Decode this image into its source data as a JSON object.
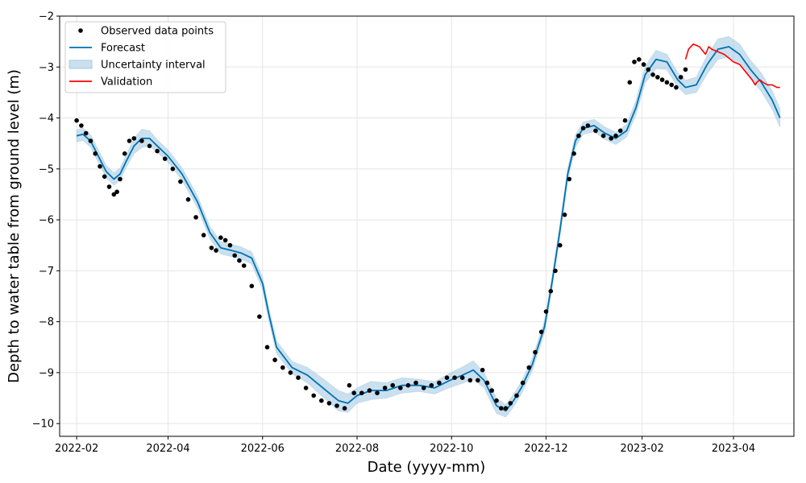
{
  "chart_data": {
    "type": "line",
    "xlabel": "Date (yyyy-mm)",
    "ylabel": "Depth to water table from ground level (m)",
    "x_ticks": [
      "2022-02",
      "2022-04",
      "2022-06",
      "2022-08",
      "2022-10",
      "2022-12",
      "2023-02",
      "2023-04"
    ],
    "xlim": [
      "2022-01-21",
      "2023-05-10"
    ],
    "y_ticks": [
      "−2",
      "−3",
      "−4",
      "−5",
      "−6",
      "−7",
      "−8",
      "−9",
      "−10"
    ],
    "ylim": [
      -10.25,
      -2
    ],
    "grid": true,
    "legend_position": "top-left",
    "colors": {
      "observed": "#000000",
      "forecast": "#0072B2",
      "uncertainty": "#A6CBE3",
      "validation": "#FF0000",
      "grid": "#E5E5E5"
    },
    "legend": [
      {
        "label": "Observed data points",
        "kind": "dot"
      },
      {
        "label": "Forecast",
        "kind": "line"
      },
      {
        "label": "Uncertainty interval",
        "kind": "band"
      },
      {
        "label": "Validation",
        "kind": "red-line"
      }
    ],
    "series": [
      {
        "name": "Observed data points",
        "kind": "scatter",
        "x": [
          "2022-02-01",
          "2022-02-04",
          "2022-02-07",
          "2022-02-10",
          "2022-02-13",
          "2022-02-16",
          "2022-02-19",
          "2022-02-22",
          "2022-02-25",
          "2022-02-27",
          "2022-03-01",
          "2022-03-04",
          "2022-03-07",
          "2022-03-10",
          "2022-03-15",
          "2022-03-20",
          "2022-03-25",
          "2022-03-30",
          "2022-04-04",
          "2022-04-09",
          "2022-04-14",
          "2022-04-19",
          "2022-04-24",
          "2022-04-29",
          "2022-05-02",
          "2022-05-05",
          "2022-05-08",
          "2022-05-11",
          "2022-05-14",
          "2022-05-17",
          "2022-05-20",
          "2022-05-25",
          "2022-05-30",
          "2022-06-04",
          "2022-06-09",
          "2022-06-14",
          "2022-06-19",
          "2022-06-24",
          "2022-06-29",
          "2022-07-04",
          "2022-07-09",
          "2022-07-14",
          "2022-07-19",
          "2022-07-24",
          "2022-07-27",
          "2022-07-30",
          "2022-08-04",
          "2022-08-09",
          "2022-08-14",
          "2022-08-19",
          "2022-08-24",
          "2022-08-29",
          "2022-09-03",
          "2022-09-08",
          "2022-09-13",
          "2022-09-18",
          "2022-09-23",
          "2022-09-28",
          "2022-10-03",
          "2022-10-08",
          "2022-10-13",
          "2022-10-18",
          "2022-10-21",
          "2022-10-24",
          "2022-10-27",
          "2022-10-30",
          "2022-11-02",
          "2022-11-05",
          "2022-11-08",
          "2022-11-12",
          "2022-11-16",
          "2022-11-20",
          "2022-11-24",
          "2022-11-28",
          "2022-12-01",
          "2022-12-04",
          "2022-12-07",
          "2022-12-10",
          "2022-12-13",
          "2022-12-16",
          "2022-12-19",
          "2022-12-22",
          "2022-12-25",
          "2022-12-28",
          "2023-01-02",
          "2023-01-07",
          "2023-01-12",
          "2023-01-15",
          "2023-01-18",
          "2023-01-21",
          "2023-01-24",
          "2023-01-27",
          "2023-01-30",
          "2023-02-02",
          "2023-02-05",
          "2023-02-08",
          "2023-02-11",
          "2023-02-14",
          "2023-02-17",
          "2023-02-20",
          "2023-02-23",
          "2023-02-26",
          "2023-03-01"
        ],
        "y": [
          -4.05,
          -4.15,
          -4.3,
          -4.45,
          -4.7,
          -4.95,
          -5.15,
          -5.35,
          -5.5,
          -5.45,
          -5.2,
          -4.7,
          -4.45,
          -4.4,
          -4.45,
          -4.55,
          -4.65,
          -4.8,
          -5.0,
          -5.25,
          -5.6,
          -5.95,
          -6.3,
          -6.55,
          -6.6,
          -6.35,
          -6.4,
          -6.5,
          -6.7,
          -6.8,
          -6.9,
          -7.3,
          -7.9,
          -8.5,
          -8.75,
          -8.9,
          -9.0,
          -9.1,
          -9.3,
          -9.45,
          -9.55,
          -9.6,
          -9.65,
          -9.7,
          -9.25,
          -9.4,
          -9.4,
          -9.35,
          -9.4,
          -9.3,
          -9.25,
          -9.3,
          -9.25,
          -9.2,
          -9.3,
          -9.25,
          -9.2,
          -9.1,
          -9.1,
          -9.1,
          -9.15,
          -9.15,
          -8.95,
          -9.2,
          -9.35,
          -9.55,
          -9.7,
          -9.7,
          -9.6,
          -9.45,
          -9.2,
          -8.9,
          -8.6,
          -8.2,
          -7.8,
          -7.4,
          -7.0,
          -6.5,
          -5.9,
          -5.2,
          -4.7,
          -4.35,
          -4.2,
          -4.15,
          -4.25,
          -4.35,
          -4.4,
          -4.35,
          -4.25,
          -4.05,
          -3.3,
          -2.9,
          -2.85,
          -2.95,
          -3.05,
          -3.15,
          -3.2,
          -3.25,
          -3.3,
          -3.35,
          -3.4,
          -3.2,
          -3.05
        ]
      },
      {
        "name": "Forecast",
        "kind": "line",
        "x": [
          "2022-02-01",
          "2022-02-05",
          "2022-02-10",
          "2022-02-15",
          "2022-02-20",
          "2022-02-25",
          "2022-03-01",
          "2022-03-05",
          "2022-03-10",
          "2022-03-15",
          "2022-03-20",
          "2022-03-25",
          "2022-04-01",
          "2022-04-10",
          "2022-04-20",
          "2022-04-28",
          "2022-05-05",
          "2022-05-12",
          "2022-05-18",
          "2022-05-25",
          "2022-06-01",
          "2022-06-05",
          "2022-06-10",
          "2022-06-20",
          "2022-06-30",
          "2022-07-10",
          "2022-07-20",
          "2022-07-26",
          "2022-08-01",
          "2022-08-10",
          "2022-08-20",
          "2022-08-30",
          "2022-09-10",
          "2022-09-20",
          "2022-09-30",
          "2022-10-08",
          "2022-10-15",
          "2022-10-22",
          "2022-10-30",
          "2022-11-05",
          "2022-11-10",
          "2022-11-15",
          "2022-11-22",
          "2022-11-30",
          "2022-12-05",
          "2022-12-10",
          "2022-12-15",
          "2022-12-20",
          "2022-12-25",
          "2023-01-01",
          "2023-01-08",
          "2023-01-15",
          "2023-01-22",
          "2023-01-28",
          "2023-02-03",
          "2023-02-10",
          "2023-02-17",
          "2023-02-24",
          "2023-03-01",
          "2023-03-08",
          "2023-03-15",
          "2023-03-22",
          "2023-03-29",
          "2023-04-05",
          "2023-04-12",
          "2023-04-19",
          "2023-04-26",
          "2023-05-01"
        ],
        "y": [
          -4.35,
          -4.32,
          -4.45,
          -4.75,
          -5.05,
          -5.2,
          -5.1,
          -4.85,
          -4.55,
          -4.4,
          -4.4,
          -4.55,
          -4.75,
          -5.1,
          -5.65,
          -6.25,
          -6.55,
          -6.6,
          -6.65,
          -6.75,
          -7.25,
          -7.85,
          -8.5,
          -8.9,
          -9.05,
          -9.3,
          -9.55,
          -9.6,
          -9.45,
          -9.35,
          -9.35,
          -9.25,
          -9.25,
          -9.3,
          -9.15,
          -9.05,
          -8.95,
          -9.15,
          -9.65,
          -9.75,
          -9.55,
          -9.3,
          -8.85,
          -8.1,
          -7.2,
          -6.2,
          -5.1,
          -4.45,
          -4.2,
          -4.15,
          -4.3,
          -4.4,
          -4.25,
          -3.8,
          -3.15,
          -2.85,
          -2.9,
          -3.25,
          -3.4,
          -3.35,
          -2.95,
          -2.65,
          -2.6,
          -2.75,
          -3.05,
          -3.3,
          -3.65,
          -4.0
        ]
      },
      {
        "name": "Uncertainty interval",
        "kind": "band",
        "half_width": [
          0.12,
          0.12,
          0.12,
          0.12,
          0.12,
          0.12,
          0.12,
          0.12,
          0.15,
          0.18,
          0.15,
          0.12,
          0.12,
          0.12,
          0.12,
          0.12,
          0.12,
          0.12,
          0.12,
          0.12,
          0.12,
          0.12,
          0.12,
          0.12,
          0.15,
          0.18,
          0.2,
          0.18,
          0.15,
          0.18,
          0.15,
          0.15,
          0.12,
          0.12,
          0.14,
          0.16,
          0.18,
          0.15,
          0.15,
          0.12,
          0.12,
          0.12,
          0.12,
          0.12,
          0.12,
          0.12,
          0.12,
          0.12,
          0.12,
          0.12,
          0.12,
          0.12,
          0.12,
          0.14,
          0.16,
          0.18,
          0.15,
          0.14,
          0.14,
          0.15,
          0.18,
          0.2,
          0.2,
          0.2,
          0.18,
          0.18,
          0.18,
          0.18
        ]
      },
      {
        "name": "Validation",
        "kind": "line",
        "x": [
          "2023-03-01",
          "2023-03-03",
          "2023-03-06",
          "2023-03-10",
          "2023-03-14",
          "2023-03-16",
          "2023-03-18",
          "2023-03-22",
          "2023-03-26",
          "2023-03-28",
          "2023-04-01",
          "2023-04-05",
          "2023-04-09",
          "2023-04-13",
          "2023-04-15",
          "2023-04-16",
          "2023-04-18",
          "2023-04-20",
          "2023-04-23",
          "2023-04-26",
          "2023-04-29",
          "2023-05-01"
        ],
        "y": [
          -2.85,
          -2.65,
          -2.55,
          -2.6,
          -2.75,
          -2.6,
          -2.65,
          -2.7,
          -2.75,
          -2.8,
          -2.9,
          -2.95,
          -3.1,
          -3.25,
          -3.35,
          -3.3,
          -3.25,
          -3.3,
          -3.35,
          -3.35,
          -3.4,
          -3.4
        ]
      }
    ]
  }
}
